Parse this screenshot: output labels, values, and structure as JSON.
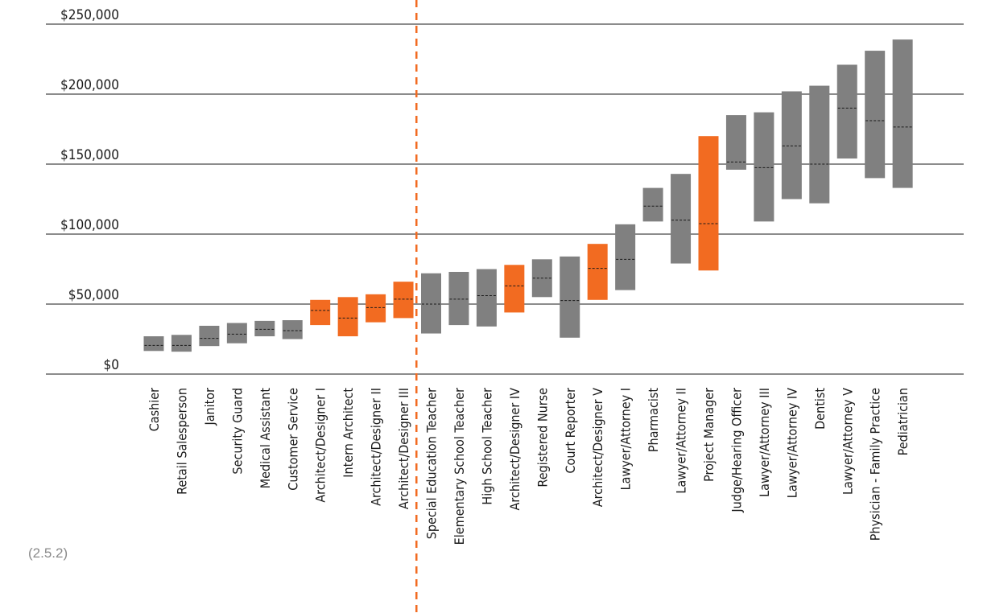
{
  "footnote": "(2.5.2)",
  "colors": {
    "highlight": "#f26b21",
    "default": "#808080",
    "grid": "#1a1a1a",
    "divider": "#f26b21"
  },
  "chart_data": {
    "type": "floating-bar",
    "ylim": [
      0,
      250000
    ],
    "yticks": [
      0,
      50000,
      100000,
      150000,
      200000,
      250000
    ],
    "ytick_labels": [
      "$0",
      "$50,000",
      "$100,000",
      "$150,000",
      "$200,000",
      "$250,000"
    ],
    "grid": true,
    "divider_after_index": 9,
    "categories": [
      "Cashier",
      "Retail Salesperson",
      "Janitor",
      "Security Guard",
      "Medical Assistant",
      "Customer Service",
      "Architect/Designer I",
      "Intern Architect",
      "Architect/Designer II",
      "Architect/Designer III",
      "Special Education Teacher",
      "Elementary School Teacher",
      "High School Teacher",
      "Architect/Designer IV",
      "Registered Nurse",
      "Court Reporter",
      "Architect/Designer V",
      "Lawyer/Attorney I",
      "Pharmacist",
      "Lawyer/Attorney II",
      "Project Manager",
      "Judge/Hearing Officer",
      "Lawyer/Attorney III",
      "Lawyer/Attorney IV",
      "Dentist",
      "Lawyer/Attorney V",
      "Physician - Family Practice",
      "Pediatrician"
    ],
    "low": [
      16500,
      16000,
      20000,
      22000,
      27000,
      25000,
      35000,
      27000,
      37000,
      40000,
      29000,
      35000,
      34000,
      44000,
      55000,
      26000,
      53000,
      60000,
      109000,
      79000,
      74000,
      146000,
      109000,
      125000,
      122000,
      154000,
      140000,
      133000
    ],
    "high": [
      27000,
      28000,
      34500,
      36500,
      38000,
      38500,
      53000,
      55000,
      57000,
      66000,
      72000,
      73000,
      75000,
      78000,
      82000,
      84000,
      93000,
      107000,
      133000,
      143000,
      170000,
      185000,
      187000,
      202000,
      206000,
      221000,
      231000,
      239000
    ],
    "median": [
      20500,
      20500,
      25500,
      28500,
      32000,
      31000,
      45500,
      40000,
      47500,
      53500,
      50000,
      53500,
      56000,
      63000,
      68500,
      52500,
      75500,
      82000,
      120000,
      110000,
      107500,
      151500,
      147500,
      163000,
      150000,
      190000,
      181000,
      176500
    ],
    "highlighted": [
      false,
      false,
      false,
      false,
      false,
      false,
      true,
      true,
      true,
      true,
      false,
      false,
      false,
      true,
      false,
      false,
      true,
      false,
      false,
      false,
      true,
      false,
      false,
      false,
      false,
      false,
      false,
      false
    ]
  }
}
